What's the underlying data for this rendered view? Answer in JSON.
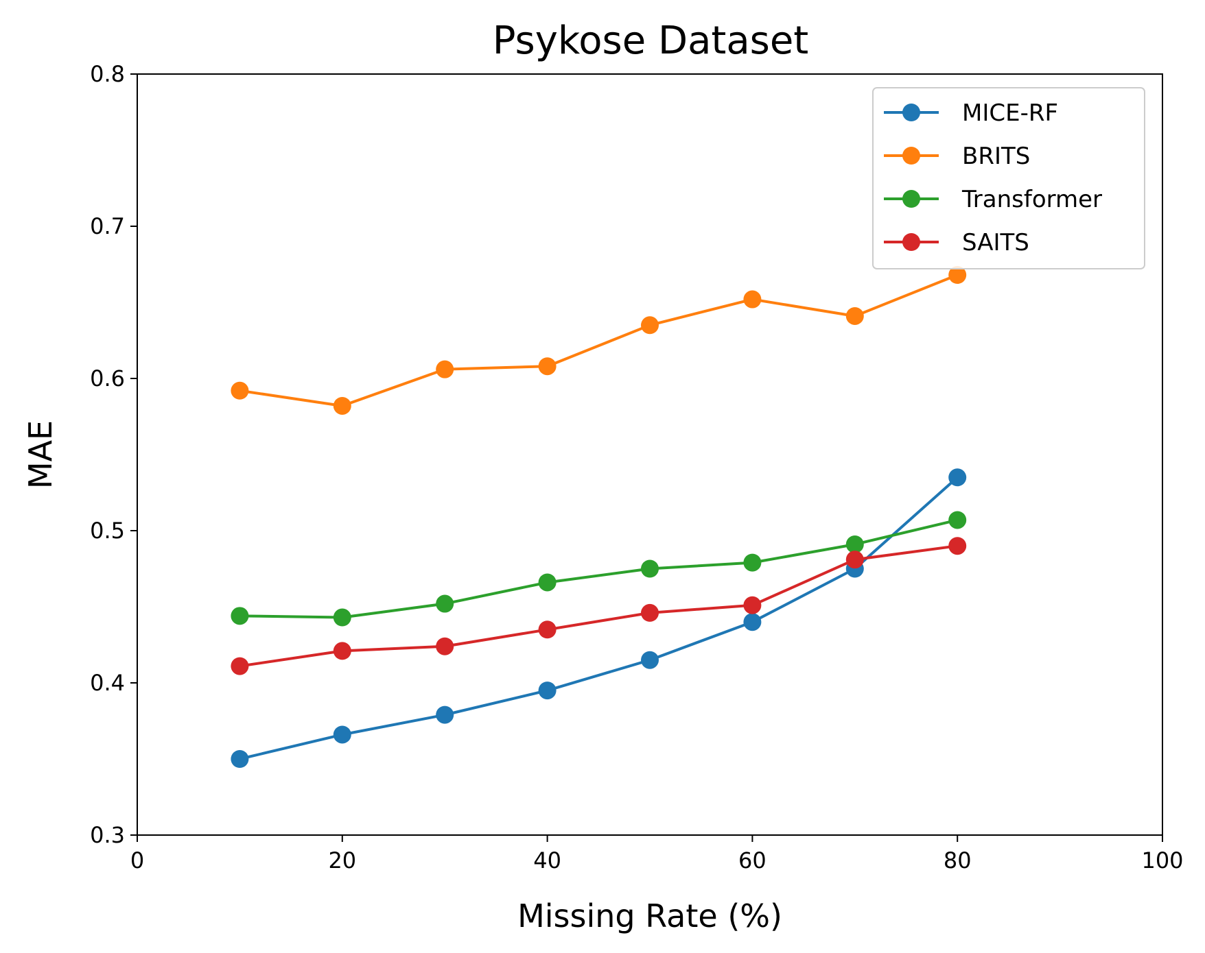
{
  "chart_data": {
    "type": "line",
    "title": "Psykose Dataset",
    "xlabel": "Missing Rate (%)",
    "ylabel": "MAE",
    "xlim": [
      0,
      100
    ],
    "ylim": [
      0.3,
      0.8
    ],
    "x": [
      10,
      20,
      30,
      40,
      50,
      60,
      70,
      80
    ],
    "x_ticks": [
      0,
      20,
      40,
      60,
      80,
      100
    ],
    "x_tick_labels": [
      "0",
      "20",
      "40",
      "60",
      "80",
      "100"
    ],
    "y_ticks": [
      0.3,
      0.4,
      0.5,
      0.6,
      0.7,
      0.8
    ],
    "y_tick_labels": [
      "0.3",
      "0.4",
      "0.5",
      "0.6",
      "0.7",
      "0.8"
    ],
    "grid": false,
    "legend_position": "top-right",
    "series": [
      {
        "name": "MICE-RF",
        "color": "#1f77b4",
        "values": [
          0.35,
          0.366,
          0.379,
          0.395,
          0.415,
          0.44,
          0.475,
          0.535
        ]
      },
      {
        "name": "BRITS",
        "color": "#ff7f0e",
        "values": [
          0.592,
          0.582,
          0.606,
          0.608,
          0.635,
          0.652,
          0.641,
          0.668
        ]
      },
      {
        "name": "Transformer",
        "color": "#2ca02c",
        "values": [
          0.444,
          0.443,
          0.452,
          0.466,
          0.475,
          0.479,
          0.491,
          0.507
        ]
      },
      {
        "name": "SAITS",
        "color": "#d62728",
        "values": [
          0.411,
          0.421,
          0.424,
          0.435,
          0.446,
          0.451,
          0.481,
          0.49
        ]
      }
    ]
  }
}
